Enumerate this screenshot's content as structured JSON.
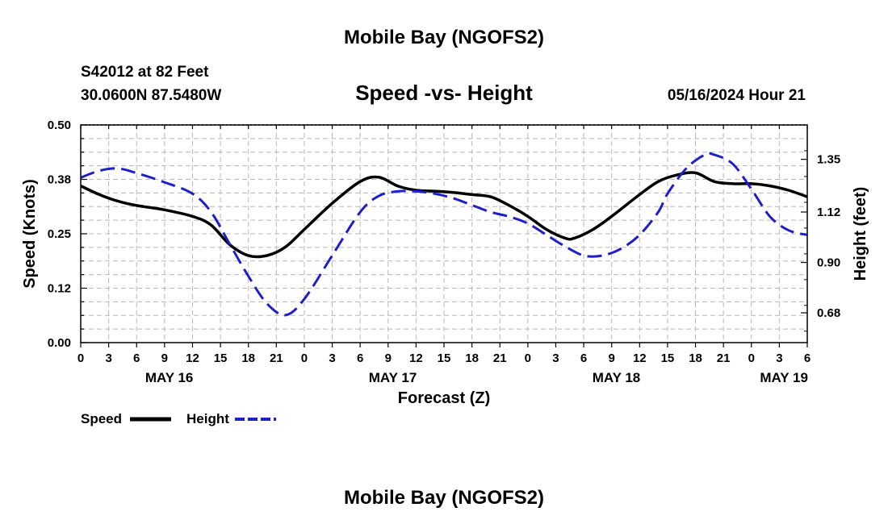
{
  "chart_data": {
    "type": "line",
    "title": "Mobile Bay (NGOFS2)",
    "subtitle": "Speed -vs- Height",
    "station": "S42012 at 82 Feet",
    "location": "30.0600N  87.5480W",
    "timestamp": "05/16/2024 Hour 21",
    "footer_title": "Mobile Bay (NGOFS2)",
    "xlabel": "Forecast (Z)",
    "ylabel_left": "Speed (Knots)",
    "ylabel_right": "Height (feet)",
    "x_hours_range": [
      0,
      78
    ],
    "ylim_left": [
      0,
      0.5
    ],
    "ylim_right": [
      0.55,
      1.5
    ],
    "x_tick_labels": [
      "0",
      "3",
      "6",
      "9",
      "12",
      "15",
      "18",
      "21",
      "0",
      "3",
      "6",
      "9",
      "12",
      "15",
      "18",
      "21",
      "0",
      "3",
      "6",
      "9",
      "12",
      "15",
      "18",
      "21",
      "0",
      "3",
      "6"
    ],
    "date_labels": [
      {
        "label": "MAY 16",
        "hour": 9.5
      },
      {
        "label": "MAY 17",
        "hour": 33.5
      },
      {
        "label": "MAY 18",
        "hour": 57.5
      },
      {
        "label": "MAY 19",
        "hour": 75.5
      }
    ],
    "left_ticks": [
      {
        "value": 0.0,
        "label": "0.00"
      },
      {
        "value": 0.125,
        "label": "0.12"
      },
      {
        "value": 0.25,
        "label": "0.25"
      },
      {
        "value": 0.375,
        "label": "0.38"
      },
      {
        "value": 0.5,
        "label": "0.50"
      }
    ],
    "right_ticks": [
      {
        "value": 0.68,
        "label": "0.68"
      },
      {
        "value": 0.9,
        "label": "0.90"
      },
      {
        "value": 1.12,
        "label": "1.12"
      },
      {
        "value": 1.35,
        "label": "1.35"
      }
    ],
    "series": [
      {
        "name": "Speed",
        "axis": "left",
        "color": "#000000",
        "dash": "solid",
        "x": [
          0,
          2,
          4,
          6,
          9,
          12,
          14,
          16,
          18,
          20,
          22,
          24,
          27,
          30,
          32,
          34,
          36,
          38,
          40,
          42,
          44,
          46,
          48,
          50,
          52,
          53,
          55,
          57,
          60,
          62,
          64,
          66,
          68,
          70,
          72,
          74,
          76,
          78
        ],
        "values": [
          0.36,
          0.34,
          0.325,
          0.315,
          0.305,
          0.29,
          0.27,
          0.225,
          0.2,
          0.2,
          0.22,
          0.26,
          0.32,
          0.37,
          0.38,
          0.36,
          0.35,
          0.348,
          0.345,
          0.34,
          0.335,
          0.315,
          0.29,
          0.26,
          0.24,
          0.24,
          0.26,
          0.29,
          0.34,
          0.37,
          0.385,
          0.39,
          0.37,
          0.365,
          0.365,
          0.36,
          0.35,
          0.335
        ]
      },
      {
        "name": "Height",
        "axis": "right",
        "color": "#1f1fc8",
        "dash": "dashed",
        "x": [
          0,
          2,
          4,
          6,
          9,
          12,
          14,
          16,
          18,
          20,
          22,
          24,
          27,
          30,
          32,
          34,
          36,
          38,
          40,
          42,
          44,
          46,
          48,
          50,
          52,
          54,
          56,
          58,
          60,
          62,
          63,
          65,
          67,
          68,
          70,
          72,
          74,
          76,
          78
        ],
        "values": [
          1.27,
          1.3,
          1.31,
          1.29,
          1.25,
          1.2,
          1.12,
          0.98,
          0.84,
          0.72,
          0.67,
          0.74,
          0.93,
          1.12,
          1.19,
          1.21,
          1.21,
          1.2,
          1.18,
          1.15,
          1.12,
          1.1,
          1.07,
          1.02,
          0.97,
          0.93,
          0.93,
          0.96,
          1.02,
          1.12,
          1.2,
          1.31,
          1.37,
          1.37,
          1.33,
          1.22,
          1.1,
          1.04,
          1.02
        ]
      }
    ],
    "legend": [
      {
        "name": "Speed",
        "color": "#000000",
        "dash": "solid"
      },
      {
        "name": "Height",
        "color": "#1f1fc8",
        "dash": "dashed"
      }
    ]
  }
}
